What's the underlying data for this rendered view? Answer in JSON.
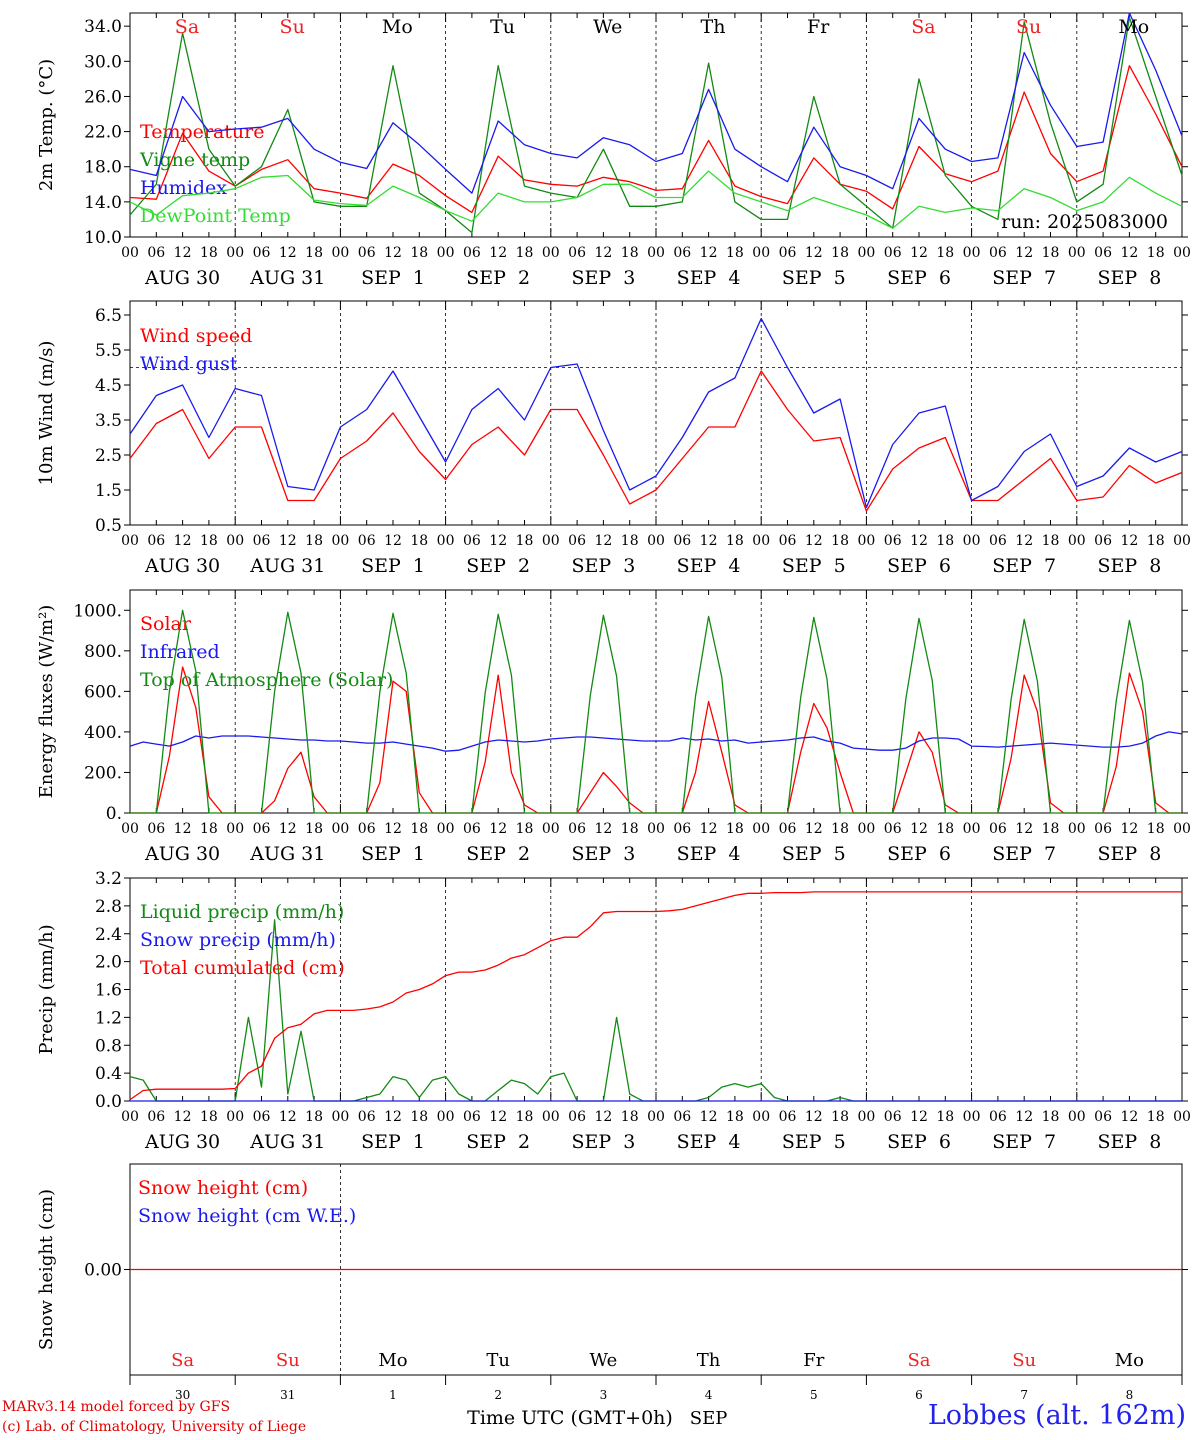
{
  "footer": {
    "credit_line1": "MARv3.14 model forced by GFS",
    "credit_line2": "(c) Lab. of Climatology, University of Liege",
    "time_label": "Time UTC (GMT+0h)",
    "month_label": "SEP",
    "station": "Lobbes (alt. 162m)"
  },
  "colors": {
    "red": "#ff0000",
    "green": "#138a13",
    "light_green": "#33dd33",
    "blue": "#1a1aee",
    "weekend": "#ee2222",
    "weekday": "#000000",
    "grid": "#000000"
  },
  "chart_data": [
    {
      "type": "line",
      "ylabel": "2m Temp. (°C)",
      "ylim": [
        10,
        35.5
      ],
      "yticks": [
        "10.0",
        "14.0",
        "18.0",
        "22.0",
        "26.0",
        "30.0",
        "34.0"
      ],
      "run_label": "run: 2025083000",
      "day_names": [
        "Sa",
        "Su",
        "Mo",
        "Tu",
        "We",
        "Th",
        "Fr",
        "Sa",
        "Su",
        "Mo"
      ],
      "x_hours": [
        0,
        6,
        12,
        18,
        24,
        30,
        36,
        42,
        48,
        54,
        60,
        66,
        72,
        78,
        84,
        90,
        96,
        102,
        108,
        114,
        120,
        126,
        132,
        138,
        144,
        150,
        156,
        162,
        168,
        174,
        180,
        186,
        192,
        198,
        204,
        210,
        216,
        222,
        228,
        234,
        240
      ],
      "series": [
        {
          "name": "Temperature",
          "color_key": "red",
          "values": [
            14.5,
            14.3,
            21.8,
            17.5,
            15.8,
            17.7,
            18.8,
            15.5,
            15.0,
            14.4,
            18.3,
            17.0,
            14.7,
            12.8,
            19.2,
            16.5,
            16.0,
            15.8,
            16.8,
            16.3,
            15.3,
            15.5,
            21.0,
            15.8,
            14.6,
            13.8,
            19.0,
            16.0,
            15.2,
            13.2,
            20.3,
            17.2,
            16.3,
            17.5,
            26.5,
            19.5,
            16.3,
            17.5,
            29.5,
            24.0,
            18.0
          ]
        },
        {
          "name": "Vigne temp",
          "color_key": "green",
          "values": [
            12.5,
            16.0,
            33.2,
            20.0,
            15.8,
            18.0,
            24.5,
            14.0,
            13.5,
            13.5,
            29.5,
            15.0,
            13.0,
            10.5,
            29.5,
            15.8,
            15.0,
            14.5,
            20.0,
            13.5,
            13.5,
            14.0,
            29.8,
            14.0,
            12.0,
            12.0,
            26.0,
            16.0,
            13.5,
            11.0,
            28.0,
            17.0,
            13.5,
            12.0,
            34.5,
            23.0,
            14.0,
            16.0,
            35.0,
            26.0,
            17.0
          ]
        },
        {
          "name": "Humidex",
          "color_key": "blue",
          "values": [
            17.7,
            17.0,
            26.0,
            22.0,
            22.3,
            22.5,
            23.5,
            20.0,
            18.5,
            17.8,
            23.0,
            20.5,
            17.7,
            15.0,
            23.2,
            20.5,
            19.5,
            19.0,
            21.3,
            20.5,
            18.6,
            19.5,
            26.8,
            20.0,
            18.0,
            16.3,
            22.5,
            18.0,
            17.0,
            15.5,
            23.5,
            20.0,
            18.6,
            19.0,
            31.0,
            25.0,
            20.3,
            20.8,
            35.5,
            29.0,
            21.5
          ]
        },
        {
          "name": "DewPoint Temp",
          "color_key": "light_green",
          "values": [
            14.0,
            12.5,
            14.7,
            15.0,
            15.5,
            16.8,
            17.0,
            14.2,
            13.8,
            13.6,
            15.8,
            14.5,
            13.0,
            11.8,
            15.0,
            14.0,
            14.0,
            14.5,
            16.0,
            16.0,
            14.5,
            14.5,
            17.5,
            15.0,
            14.0,
            13.0,
            14.5,
            13.5,
            12.5,
            11.0,
            13.5,
            12.8,
            13.3,
            13.0,
            15.5,
            14.5,
            13.0,
            14.0,
            16.8,
            15.0,
            13.5
          ]
        }
      ]
    },
    {
      "type": "line",
      "ylabel": "10m Wind (m/s)",
      "ylim": [
        0.5,
        6.9
      ],
      "yticks": [
        "0.5",
        "1.5",
        "2.5",
        "3.5",
        "4.5",
        "5.5",
        "6.5"
      ],
      "reference_line": 5.0,
      "x_hours": [
        0,
        6,
        12,
        18,
        24,
        30,
        36,
        42,
        48,
        54,
        60,
        66,
        72,
        78,
        84,
        90,
        96,
        102,
        108,
        114,
        120,
        126,
        132,
        138,
        144,
        150,
        156,
        162,
        168,
        174,
        180,
        186,
        192,
        198,
        204,
        210,
        216,
        222,
        228,
        234,
        240
      ],
      "series": [
        {
          "name": "Wind speed",
          "color_key": "red",
          "values": [
            2.4,
            3.4,
            3.8,
            2.4,
            3.3,
            3.3,
            1.2,
            1.2,
            2.4,
            2.9,
            3.7,
            2.6,
            1.8,
            2.8,
            3.3,
            2.5,
            3.8,
            3.8,
            2.5,
            1.1,
            1.5,
            2.4,
            3.3,
            3.3,
            4.9,
            3.8,
            2.9,
            3.0,
            0.9,
            2.1,
            2.7,
            3.0,
            1.2,
            1.2,
            1.8,
            2.4,
            1.2,
            1.3,
            2.2,
            1.7,
            2.0
          ]
        },
        {
          "name": "Wind gust",
          "color_key": "blue",
          "values": [
            3.1,
            4.2,
            4.5,
            3.0,
            4.4,
            4.2,
            1.6,
            1.5,
            3.3,
            3.8,
            4.9,
            3.6,
            2.3,
            3.8,
            4.4,
            3.5,
            5.0,
            5.1,
            3.2,
            1.5,
            1.9,
            3.0,
            4.3,
            4.7,
            6.4,
            5.0,
            3.7,
            4.1,
            1.0,
            2.8,
            3.7,
            3.9,
            1.2,
            1.6,
            2.6,
            3.1,
            1.6,
            1.9,
            2.7,
            2.3,
            2.6
          ]
        }
      ]
    },
    {
      "type": "line",
      "ylabel": "Energy fluxes (W/m²)",
      "ylim": [
        0,
        1100
      ],
      "yticks": [
        "0.",
        "200.",
        "400.",
        "600.",
        "800.",
        "1000."
      ],
      "x_hours": [
        0,
        3,
        6,
        9,
        12,
        15,
        18,
        21,
        24,
        27,
        30,
        33,
        36,
        39,
        42,
        45,
        48,
        51,
        54,
        57,
        60,
        63,
        66,
        69,
        72,
        75,
        78,
        81,
        84,
        87,
        90,
        93,
        96,
        99,
        102,
        105,
        108,
        111,
        114,
        117,
        120,
        123,
        126,
        129,
        132,
        135,
        138,
        141,
        144,
        147,
        150,
        153,
        156,
        159,
        162,
        165,
        168,
        171,
        174,
        177,
        180,
        183,
        186,
        189,
        192,
        195,
        198,
        201,
        204,
        207,
        210,
        213,
        216,
        219,
        222,
        225,
        228,
        231,
        234,
        237,
        240
      ],
      "series": [
        {
          "name": "Solar",
          "color_key": "red",
          "values": [
            0,
            0,
            0,
            280,
            720,
            520,
            80,
            0,
            0,
            0,
            0,
            60,
            220,
            300,
            80,
            0,
            0,
            0,
            0,
            150,
            650,
            600,
            100,
            0,
            0,
            0,
            0,
            250,
            680,
            200,
            40,
            0,
            0,
            0,
            0,
            100,
            200,
            130,
            50,
            0,
            0,
            0,
            0,
            200,
            550,
            300,
            40,
            0,
            0,
            0,
            0,
            300,
            540,
            420,
            200,
            0,
            0,
            0,
            0,
            200,
            400,
            300,
            40,
            0,
            0,
            0,
            0,
            270,
            680,
            500,
            50,
            0,
            0,
            0,
            0,
            230,
            690,
            500,
            50,
            0,
            0
          ]
        },
        {
          "name": "Infrared",
          "color_key": "blue",
          "values": [
            330,
            350,
            340,
            330,
            350,
            380,
            370,
            380,
            380,
            380,
            375,
            370,
            365,
            360,
            360,
            355,
            355,
            350,
            345,
            345,
            350,
            340,
            330,
            320,
            305,
            310,
            330,
            350,
            360,
            355,
            350,
            355,
            365,
            370,
            375,
            375,
            370,
            365,
            360,
            355,
            355,
            355,
            370,
            360,
            365,
            355,
            360,
            345,
            350,
            355,
            360,
            370,
            375,
            355,
            345,
            320,
            315,
            310,
            310,
            320,
            355,
            370,
            370,
            365,
            330,
            328,
            325,
            330,
            335,
            340,
            345,
            340,
            335,
            330,
            325,
            325,
            330,
            345,
            380,
            400,
            390
          ]
        },
        {
          "name": "Top of Atmosphere (Solar)",
          "color_key": "green",
          "values": [
            0,
            0,
            0,
            600,
            1000,
            700,
            0,
            0,
            0,
            0,
            0,
            600,
            990,
            690,
            0,
            0,
            0,
            0,
            0,
            600,
            985,
            690,
            0,
            0,
            0,
            0,
            0,
            590,
            980,
            680,
            0,
            0,
            0,
            0,
            0,
            580,
            975,
            675,
            0,
            0,
            0,
            0,
            0,
            575,
            970,
            670,
            0,
            0,
            0,
            0,
            0,
            570,
            965,
            660,
            0,
            0,
            0,
            0,
            0,
            565,
            960,
            655,
            0,
            0,
            0,
            0,
            0,
            560,
            955,
            650,
            0,
            0,
            0,
            0,
            0,
            555,
            950,
            645,
            0,
            0,
            0
          ]
        }
      ]
    },
    {
      "type": "line",
      "ylabel": "Precip (mm/h)",
      "ylim": [
        0,
        3.2
      ],
      "yticks": [
        "0.0",
        "0.4",
        "0.8",
        "1.2",
        "1.6",
        "2.0",
        "2.4",
        "2.8",
        "3.2"
      ],
      "x_hours": [
        0,
        3,
        6,
        9,
        12,
        15,
        18,
        21,
        24,
        27,
        30,
        33,
        36,
        39,
        42,
        45,
        48,
        51,
        54,
        57,
        60,
        63,
        66,
        69,
        72,
        75,
        78,
        81,
        84,
        87,
        90,
        93,
        96,
        99,
        102,
        105,
        108,
        111,
        114,
        117,
        120,
        123,
        126,
        129,
        132,
        135,
        138,
        141,
        144,
        147,
        150,
        153,
        156,
        159,
        162,
        165,
        168,
        171,
        174,
        177,
        180,
        183,
        186,
        189,
        192,
        195,
        198,
        201,
        204,
        207,
        210,
        213,
        216,
        219,
        222,
        225,
        228,
        231,
        234,
        237,
        240
      ],
      "series": [
        {
          "name": "Liquid precip (mm/h)",
          "color_key": "green",
          "values": [
            0.35,
            0.3,
            0,
            0,
            0,
            0,
            0,
            0,
            0,
            1.2,
            0.2,
            2.6,
            0.1,
            1.0,
            0,
            0,
            0,
            0,
            0.05,
            0.1,
            0.35,
            0.3,
            0.05,
            0.3,
            0.35,
            0.1,
            0,
            0,
            0.15,
            0.3,
            0.25,
            0.1,
            0.35,
            0.4,
            0,
            0,
            0,
            1.2,
            0.1,
            0,
            0,
            0,
            0,
            0,
            0.05,
            0.2,
            0.25,
            0.2,
            0.25,
            0.05,
            0,
            0,
            0,
            0,
            0.05,
            0,
            0,
            0,
            0,
            0,
            0,
            0,
            0,
            0,
            0,
            0,
            0,
            0,
            0,
            0,
            0,
            0,
            0,
            0,
            0,
            0,
            0,
            0,
            0,
            0,
            0
          ]
        },
        {
          "name": "Snow precip (mm/h)",
          "color_key": "blue",
          "values": [
            0,
            0,
            0,
            0,
            0,
            0,
            0,
            0,
            0,
            0,
            0,
            0,
            0,
            0,
            0,
            0,
            0,
            0,
            0,
            0,
            0,
            0,
            0,
            0,
            0,
            0,
            0,
            0,
            0,
            0,
            0,
            0,
            0,
            0,
            0,
            0,
            0,
            0,
            0,
            0,
            0,
            0,
            0,
            0,
            0,
            0,
            0,
            0,
            0,
            0,
            0,
            0,
            0,
            0,
            0,
            0,
            0,
            0,
            0,
            0,
            0,
            0,
            0,
            0,
            0,
            0,
            0,
            0,
            0,
            0,
            0,
            0,
            0,
            0,
            0,
            0,
            0,
            0,
            0,
            0,
            0
          ]
        },
        {
          "name": "Total cumulated (cm)",
          "color_key": "red",
          "values": [
            0.02,
            0.15,
            0.17,
            0.17,
            0.17,
            0.17,
            0.17,
            0.17,
            0.18,
            0.4,
            0.5,
            0.9,
            1.05,
            1.1,
            1.25,
            1.3,
            1.3,
            1.3,
            1.32,
            1.35,
            1.42,
            1.55,
            1.6,
            1.68,
            1.8,
            1.85,
            1.85,
            1.88,
            1.95,
            2.05,
            2.1,
            2.2,
            2.3,
            2.35,
            2.35,
            2.5,
            2.7,
            2.72,
            2.72,
            2.72,
            2.72,
            2.73,
            2.75,
            2.8,
            2.85,
            2.9,
            2.95,
            2.98,
            2.98,
            2.99,
            2.99,
            2.99,
            3.0,
            3.0,
            3.0,
            3.0,
            3.0,
            3.0,
            3.0,
            3.0,
            3.0,
            3.0,
            3.0,
            3.0,
            3.0,
            3.0,
            3.0,
            3.0,
            3.0,
            3.0,
            3.0,
            3.0,
            3.0,
            3.0,
            3.0,
            3.0,
            3.0,
            3.0,
            3.0,
            3.0,
            3.0
          ]
        }
      ]
    },
    {
      "type": "line",
      "ylabel": "Snow height (cm)",
      "yticks": [
        "0.00"
      ],
      "day_names": [
        "Sa",
        "Su",
        "Mo",
        "Tu",
        "We",
        "Th",
        "Fr",
        "Sa",
        "Su",
        "Mo"
      ],
      "day_numbers": [
        "30",
        "31",
        "1",
        "2",
        "3",
        "4",
        "5",
        "6",
        "7",
        "8"
      ],
      "x_hours": [
        0,
        240
      ],
      "series": [
        {
          "name": "Snow height (cm)",
          "color_key": "red",
          "values": [
            0,
            0
          ]
        },
        {
          "name": "Snow height (cm W.E.)",
          "color_key": "blue",
          "values": [
            0,
            0
          ]
        }
      ]
    }
  ],
  "x_axis": {
    "hour_ticks": [
      "00",
      "06",
      "12",
      "18"
    ],
    "date_labels": [
      "AUG 30",
      "AUG 31",
      "SEP  1",
      "SEP  2",
      "SEP  3",
      "SEP  4",
      "SEP  5",
      "SEP  6",
      "SEP  7",
      "SEP  8"
    ],
    "weekend_days": [
      0,
      1,
      7,
      8
    ]
  }
}
